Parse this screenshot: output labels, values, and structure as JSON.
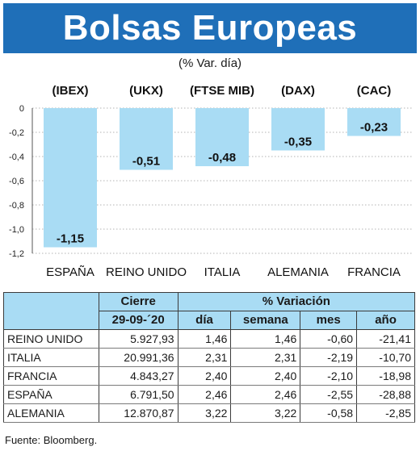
{
  "header": {
    "title": "Bolsas Europeas",
    "subtitle": "(% Var. día)"
  },
  "colors": {
    "title_bg": "#1f6fb8",
    "bar": "#a9dcf4",
    "table_header_bg": "#a9dcf4"
  },
  "chart_data": {
    "type": "bar",
    "categories": [
      "ESPAÑA",
      "REINO UNIDO",
      "ITALIA",
      "ALEMANIA",
      "FRANCIA"
    ],
    "index_labels": [
      "(IBEX)",
      "(UKX)",
      "(FTSE MIB)",
      "(DAX)",
      "(CAC)"
    ],
    "values": [
      -1.15,
      -0.51,
      -0.48,
      -0.35,
      -0.23
    ],
    "value_labels": [
      "-1,15",
      "-0,51",
      "-0,48",
      "-0,35",
      "-0,23"
    ],
    "yticks": [
      0,
      -0.2,
      -0.4,
      -0.6,
      -0.8,
      -1.0,
      -1.2
    ],
    "ytick_labels": [
      "0",
      "-0,2",
      "-0,4",
      "-0,6",
      "-0,8",
      "-1,0",
      "-1,2"
    ],
    "ylim": [
      -1.2,
      0
    ],
    "grid": true
  },
  "table": {
    "group_headers": {
      "cierre": "Cierre",
      "variacion": "% Variación"
    },
    "sub_headers": {
      "date": "29-09-´20",
      "dia": "día",
      "semana": "semana",
      "mes": "mes",
      "anio": "año"
    },
    "rows": [
      {
        "name": "REINO UNIDO",
        "cierre": "5.927,93",
        "dia": "1,46",
        "semana": "1,46",
        "mes": "-0,60",
        "anio": "-21,41"
      },
      {
        "name": "ITALIA",
        "cierre": "20.991,36",
        "dia": "2,31",
        "semana": "2,31",
        "mes": "-2,19",
        "anio": "-10,70"
      },
      {
        "name": "FRANCIA",
        "cierre": "4.843,27",
        "dia": "2,40",
        "semana": "2,40",
        "mes": "-2,10",
        "anio": "-18,98"
      },
      {
        "name": "ESPAÑA",
        "cierre": "6.791,50",
        "dia": "2,46",
        "semana": "2,46",
        "mes": "-2,55",
        "anio": "-28,88"
      },
      {
        "name": "ALEMANIA",
        "cierre": "12.870,87",
        "dia": "3,22",
        "semana": "3,22",
        "mes": "-0,58",
        "anio": "-2,85"
      }
    ]
  },
  "source": "Fuente: Bloomberg."
}
